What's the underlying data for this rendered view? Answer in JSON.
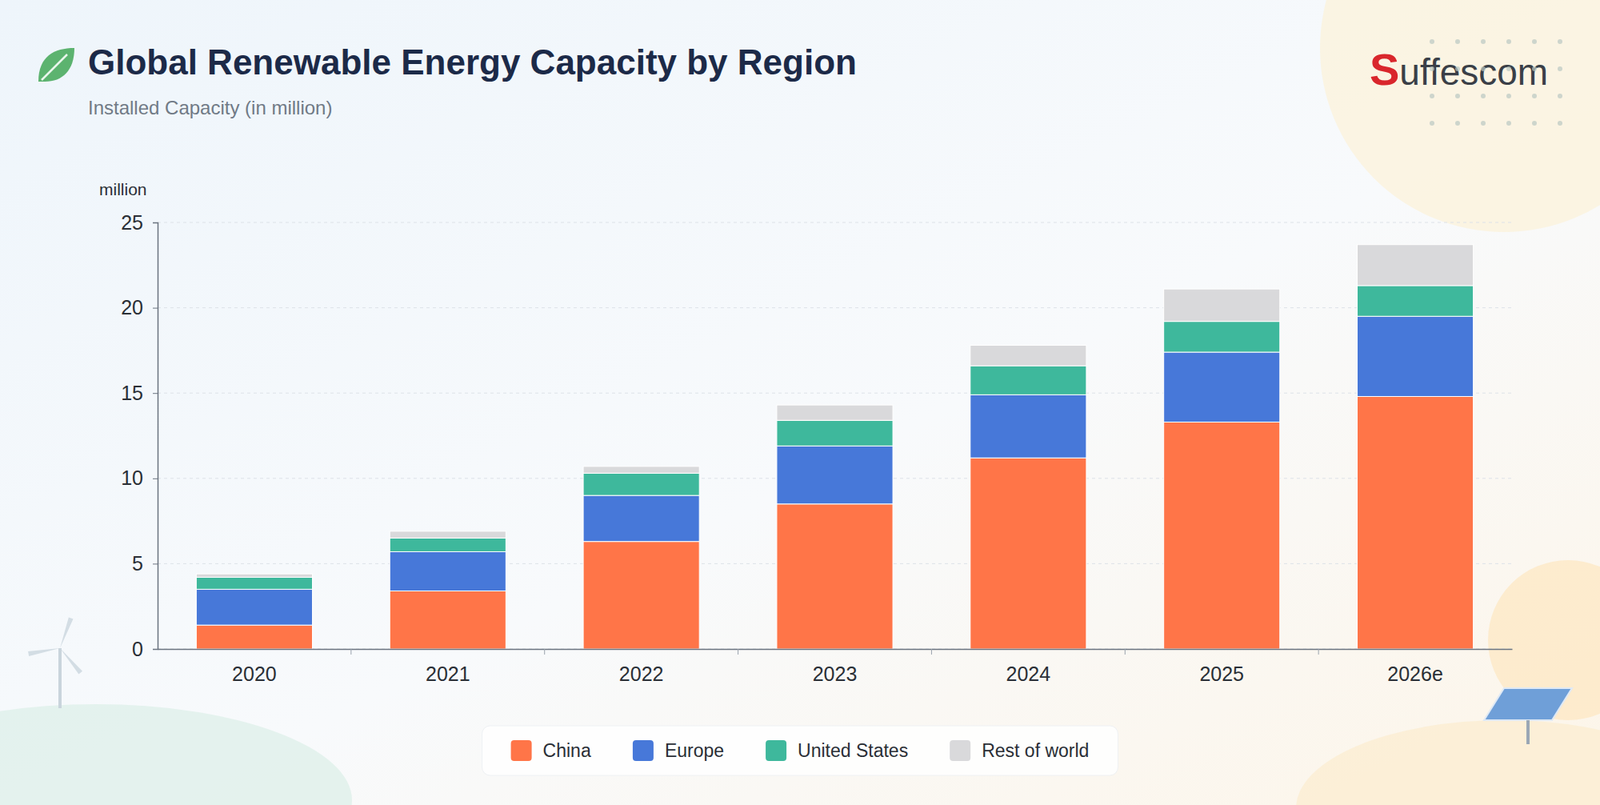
{
  "brand": "Suffescom",
  "chart_data": {
    "type": "bar",
    "stacked": true,
    "title": "Global Renewable Energy Capacity by Region",
    "subtitle": "Installed Capacity (in million)",
    "ylabel": "million",
    "categories": [
      "2020",
      "2021",
      "2022",
      "2023",
      "2024",
      "2025",
      "2026e"
    ],
    "series": [
      {
        "name": "China",
        "color": "#ff7548",
        "values": [
          1.4,
          3.4,
          6.3,
          8.5,
          11.2,
          13.3,
          14.8
        ]
      },
      {
        "name": "Europe",
        "color": "#4778d9",
        "values": [
          2.1,
          2.3,
          2.7,
          3.4,
          3.7,
          4.1,
          4.7
        ]
      },
      {
        "name": "United States",
        "color": "#3eb89c",
        "values": [
          0.7,
          0.8,
          1.3,
          1.5,
          1.7,
          1.8,
          1.8
        ]
      },
      {
        "name": "Rest of world",
        "color": "#d9d9db",
        "values": [
          0.2,
          0.4,
          0.4,
          0.9,
          1.2,
          1.9,
          2.4
        ]
      }
    ],
    "ylim": [
      0,
      25
    ],
    "yticks": [
      0,
      5,
      10,
      15,
      20,
      25
    ],
    "grid": true,
    "legend": "bottom"
  }
}
